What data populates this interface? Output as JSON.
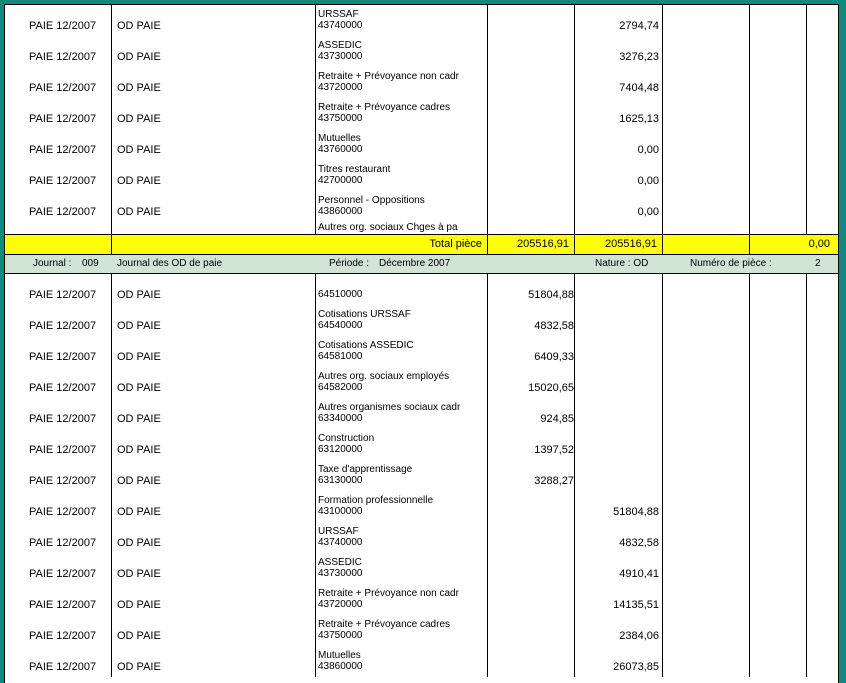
{
  "top_rows": [
    {
      "journal": "PAIE 12/2007",
      "type": "OD PAIE",
      "label1": "URSSAF",
      "label2": "43740000",
      "debit": "",
      "credit": "2794,74"
    },
    {
      "journal": "PAIE 12/2007",
      "type": "OD PAIE",
      "label1": "ASSEDIC",
      "label2": "43730000",
      "debit": "",
      "credit": "3276,23"
    },
    {
      "journal": "PAIE 12/2007",
      "type": "OD PAIE",
      "label1": "Retraite + Prévoyance non cadr",
      "label2": "43720000",
      "debit": "",
      "credit": "7404,48"
    },
    {
      "journal": "PAIE 12/2007",
      "type": "OD PAIE",
      "label1": "Retraite + Prévoyance cadres",
      "label2": "43750000",
      "debit": "",
      "credit": "1625,13"
    },
    {
      "journal": "PAIE 12/2007",
      "type": "OD PAIE",
      "label1": "Mutuelles",
      "label2": "43760000",
      "debit": "",
      "credit": "0,00"
    },
    {
      "journal": "PAIE 12/2007",
      "type": "OD PAIE",
      "label1": "Titres restaurant",
      "label2": "42700000",
      "debit": "",
      "credit": "0,00"
    },
    {
      "journal": "PAIE 12/2007",
      "type": "OD PAIE",
      "label1": "Personnel - Oppositions",
      "label2": "43860000",
      "debit": "",
      "credit": "0,00"
    }
  ],
  "top_trailing_label": "Autres org. sociaux Chges à pa",
  "total": {
    "label": "Total pièce",
    "debit": "205516,91",
    "credit": "205516,91",
    "balance": "0,00"
  },
  "journal_header": {
    "journal_label": "Journal :",
    "journal_code": "009",
    "journal_name": "Journal des OD de paie",
    "period_label": "Période :",
    "period_value": "Décembre  2007",
    "nature": "Nature : OD",
    "piece_label": "Numéro de pièce :",
    "piece_value": "2"
  },
  "bottom_rows": [
    {
      "journal": "PAIE 12/2007",
      "type": "OD PAIE",
      "label1": "",
      "label2": "64510000",
      "debit": "51804,88",
      "credit": ""
    },
    {
      "journal": "PAIE 12/2007",
      "type": "OD PAIE",
      "label1": "Cotisations URSSAF",
      "label2": "64540000",
      "debit": "4832,58",
      "credit": ""
    },
    {
      "journal": "PAIE 12/2007",
      "type": "OD PAIE",
      "label1": "Cotisations ASSEDIC",
      "label2": "64581000",
      "debit": "6409,33",
      "credit": ""
    },
    {
      "journal": "PAIE 12/2007",
      "type": "OD PAIE",
      "label1": "Autres org. sociaux employés",
      "label2": "64582000",
      "debit": "15020,65",
      "credit": ""
    },
    {
      "journal": "PAIE 12/2007",
      "type": "OD PAIE",
      "label1": "Autres organismes sociaux cadr",
      "label2": "63340000",
      "debit": "924,85",
      "credit": ""
    },
    {
      "journal": "PAIE 12/2007",
      "type": "OD PAIE",
      "label1": "Construction",
      "label2": "63120000",
      "debit": "1397,52",
      "credit": ""
    },
    {
      "journal": "PAIE 12/2007",
      "type": "OD PAIE",
      "label1": "Taxe d'apprentissage",
      "label2": "63130000",
      "debit": "3288,27",
      "credit": ""
    },
    {
      "journal": "PAIE 12/2007",
      "type": "OD PAIE",
      "label1": "Formation professionnelle",
      "label2": "43100000",
      "debit": "",
      "credit": "51804,88"
    },
    {
      "journal": "PAIE 12/2007",
      "type": "OD PAIE",
      "label1": "URSSAF",
      "label2": "43740000",
      "debit": "",
      "credit": "4832,58"
    },
    {
      "journal": "PAIE 12/2007",
      "type": "OD PAIE",
      "label1": "ASSEDIC",
      "label2": "43730000",
      "debit": "",
      "credit": "4910,41"
    },
    {
      "journal": "PAIE 12/2007",
      "type": "OD PAIE",
      "label1": "Retraite + Prévoyance non cadr",
      "label2": "43720000",
      "debit": "",
      "credit": "14135,51"
    },
    {
      "journal": "PAIE 12/2007",
      "type": "OD PAIE",
      "label1": "Retraite + Prévoyance cadres",
      "label2": "43750000",
      "debit": "",
      "credit": "2384,06"
    },
    {
      "journal": "PAIE 12/2007",
      "type": "OD PAIE",
      "label1": "Mutuelles",
      "label2": "43860000",
      "debit": "",
      "credit": "26073,85"
    }
  ]
}
